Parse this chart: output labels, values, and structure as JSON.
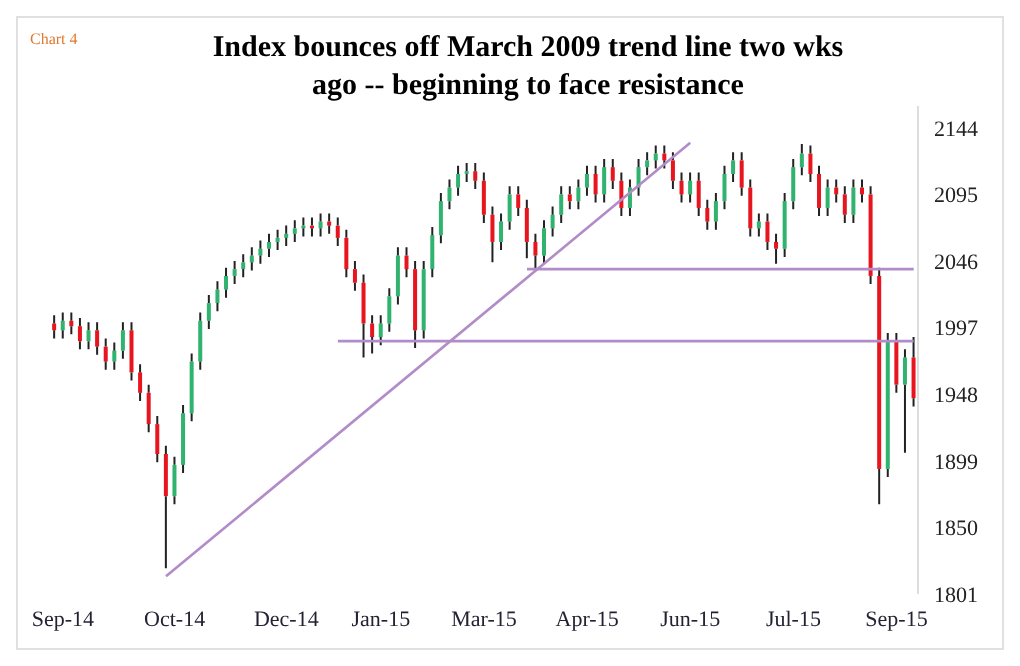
{
  "chart_data": {
    "type": "candlestick",
    "title": "Index bounces off March 2009 trend line two wks ago -- beginning to face resistance",
    "annotations": [
      "Chart 4"
    ],
    "categories": [
      null,
      "Sep-14",
      null,
      null,
      null,
      null,
      null,
      null,
      null,
      null,
      null,
      null,
      null,
      null,
      "Oct-14",
      null,
      null,
      null,
      null,
      null,
      null,
      null,
      null,
      null,
      null,
      null,
      null,
      "Dec-14",
      null,
      null,
      null,
      null,
      null,
      null,
      null,
      null,
      null,
      null,
      "Jan-15",
      null,
      null,
      null,
      null,
      null,
      null,
      null,
      null,
      null,
      null,
      null,
      "Mar-15",
      null,
      null,
      null,
      null,
      null,
      null,
      null,
      null,
      null,
      null,
      null,
      "Apr-15",
      null,
      null,
      null,
      null,
      null,
      null,
      null,
      null,
      null,
      null,
      null,
      "Jun-15",
      null,
      null,
      null,
      null,
      null,
      null,
      null,
      null,
      null,
      null,
      null,
      "Jul-15",
      null,
      null,
      null,
      null,
      null,
      null,
      null,
      null,
      null,
      null,
      null,
      "Sep-15",
      null,
      null
    ],
    "ohlc": [
      [
        2000,
        2006,
        1989,
        1995
      ],
      [
        1995,
        2008,
        1989,
        2002
      ],
      [
        2002,
        2008,
        1992,
        1998
      ],
      [
        1998,
        2004,
        1981,
        1987
      ],
      [
        1987,
        2001,
        1981,
        1995
      ],
      [
        1995,
        2001,
        1977,
        1983
      ],
      [
        1983,
        1989,
        1966,
        1972
      ],
      [
        1972,
        1986,
        1966,
        1980
      ],
      [
        1980,
        2001,
        1974,
        1995
      ],
      [
        1995,
        2001,
        1958,
        1964
      ],
      [
        1964,
        1970,
        1943,
        1949
      ],
      [
        1949,
        1955,
        1920,
        1926
      ],
      [
        1926,
        1932,
        1898,
        1904
      ],
      [
        1904,
        1910,
        1820,
        1873
      ],
      [
        1873,
        1902,
        1867,
        1896
      ],
      [
        1896,
        1940,
        1890,
        1934
      ],
      [
        1934,
        1978,
        1928,
        1972
      ],
      [
        1972,
        2008,
        1966,
        2002
      ],
      [
        2002,
        2021,
        1996,
        2015
      ],
      [
        2015,
        2031,
        2009,
        2025
      ],
      [
        2025,
        2041,
        2019,
        2035
      ],
      [
        2035,
        2046,
        2029,
        2040
      ],
      [
        2040,
        2051,
        2034,
        2045
      ],
      [
        2045,
        2056,
        2039,
        2050
      ],
      [
        2050,
        2061,
        2044,
        2055
      ],
      [
        2055,
        2066,
        2049,
        2060
      ],
      [
        2060,
        2069,
        2054,
        2063
      ],
      [
        2063,
        2072,
        2057,
        2066
      ],
      [
        2066,
        2076,
        2060,
        2070
      ],
      [
        2070,
        2078,
        2064,
        2072
      ],
      [
        2072,
        2078,
        2064,
        2070
      ],
      [
        2070,
        2081,
        2064,
        2075
      ],
      [
        2075,
        2081,
        2066,
        2072
      ],
      [
        2072,
        2078,
        2057,
        2063
      ],
      [
        2063,
        2069,
        2034,
        2040
      ],
      [
        2040,
        2046,
        2024,
        2030
      ],
      [
        2030,
        2036,
        1975,
        2000
      ],
      [
        2000,
        2006,
        1978,
        1990
      ],
      [
        1990,
        2006,
        1984,
        2000
      ],
      [
        2000,
        2026,
        1994,
        2020
      ],
      [
        2020,
        2056,
        2014,
        2050
      ],
      [
        2050,
        2056,
        2034,
        2040
      ],
      [
        2040,
        2046,
        1982,
        1995
      ],
      [
        1995,
        2046,
        1989,
        2040
      ],
      [
        2040,
        2071,
        2034,
        2065
      ],
      [
        2065,
        2096,
        2059,
        2090
      ],
      [
        2090,
        2106,
        2084,
        2100
      ],
      [
        2100,
        2116,
        2094,
        2110
      ],
      [
        2110,
        2118,
        2104,
        2112
      ],
      [
        2112,
        2118,
        2099,
        2105
      ],
      [
        2105,
        2111,
        2074,
        2080
      ],
      [
        2080,
        2086,
        2045,
        2060
      ],
      [
        2060,
        2081,
        2054,
        2075
      ],
      [
        2075,
        2101,
        2069,
        2095
      ],
      [
        2095,
        2101,
        2079,
        2085
      ],
      [
        2085,
        2091,
        2048,
        2060
      ],
      [
        2060,
        2066,
        2040,
        2050
      ],
      [
        2050,
        2076,
        2044,
        2070
      ],
      [
        2070,
        2086,
        2064,
        2080
      ],
      [
        2080,
        2101,
        2074,
        2095
      ],
      [
        2095,
        2101,
        2084,
        2090
      ],
      [
        2090,
        2106,
        2084,
        2100
      ],
      [
        2100,
        2116,
        2094,
        2110
      ],
      [
        2110,
        2116,
        2089,
        2095
      ],
      [
        2095,
        2121,
        2089,
        2115
      ],
      [
        2115,
        2121,
        2099,
        2105
      ],
      [
        2105,
        2111,
        2079,
        2085
      ],
      [
        2085,
        2106,
        2079,
        2100
      ],
      [
        2100,
        2121,
        2094,
        2115
      ],
      [
        2115,
        2126,
        2109,
        2120
      ],
      [
        2120,
        2131,
        2114,
        2125
      ],
      [
        2125,
        2131,
        2114,
        2120
      ],
      [
        2120,
        2126,
        2099,
        2105
      ],
      [
        2105,
        2111,
        2089,
        2095
      ],
      [
        2095,
        2111,
        2089,
        2105
      ],
      [
        2105,
        2111,
        2079,
        2085
      ],
      [
        2085,
        2091,
        2069,
        2075
      ],
      [
        2075,
        2096,
        2069,
        2090
      ],
      [
        2090,
        2116,
        2084,
        2110
      ],
      [
        2110,
        2126,
        2104,
        2120
      ],
      [
        2120,
        2126,
        2094,
        2100
      ],
      [
        2100,
        2106,
        2064,
        2070
      ],
      [
        2070,
        2081,
        2064,
        2075
      ],
      [
        2075,
        2081,
        2054,
        2060
      ],
      [
        2060,
        2066,
        2044,
        2055
      ],
      [
        2055,
        2096,
        2049,
        2090
      ],
      [
        2090,
        2121,
        2084,
        2115
      ],
      [
        2115,
        2132,
        2109,
        2125
      ],
      [
        2125,
        2131,
        2104,
        2110
      ],
      [
        2110,
        2116,
        2079,
        2085
      ],
      [
        2085,
        2106,
        2079,
        2100
      ],
      [
        2100,
        2106,
        2089,
        2095
      ],
      [
        2095,
        2101,
        2074,
        2080
      ],
      [
        2080,
        2106,
        2074,
        2100
      ],
      [
        2100,
        2106,
        2089,
        2095
      ],
      [
        2095,
        2101,
        2029,
        2035
      ],
      [
        2035,
        2041,
        1867,
        1893
      ],
      [
        1893,
        1993,
        1887,
        1987
      ],
      [
        1987,
        1993,
        1949,
        1955
      ],
      [
        1955,
        1981,
        1905,
        1975
      ],
      [
        1975,
        1990,
        1939,
        1945
      ]
    ],
    "series": [
      {
        "type": "line",
        "color": "#b28cc8",
        "values": [
          null,
          null,
          null,
          null,
          null,
          null,
          null,
          null,
          null,
          null,
          null,
          null,
          null,
          1814,
          null,
          null,
          null,
          null,
          null,
          null,
          null,
          null,
          null,
          null,
          null,
          null,
          null,
          null,
          null,
          null,
          null,
          null,
          null,
          null,
          null,
          null,
          null,
          null,
          null,
          null,
          null,
          null,
          null,
          null,
          null,
          null,
          null,
          null,
          null,
          null,
          null,
          null,
          null,
          null,
          null,
          null,
          null,
          null,
          null,
          null,
          null,
          null,
          null,
          null,
          null,
          null,
          null,
          null,
          null,
          null,
          null,
          null,
          null,
          null,
          2133,
          null,
          null,
          null,
          null,
          null,
          null,
          null,
          null,
          null,
          null,
          null,
          null,
          null,
          null,
          null,
          null,
          null,
          null,
          null,
          null,
          null,
          null,
          null,
          null,
          null,
          null
        ]
      },
      {
        "type": "line",
        "color": "#b28cc8",
        "values": [
          null,
          null,
          null,
          null,
          null,
          null,
          null,
          null,
          null,
          null,
          null,
          null,
          null,
          null,
          null,
          null,
          null,
          null,
          null,
          null,
          null,
          null,
          null,
          null,
          null,
          null,
          null,
          null,
          null,
          null,
          null,
          null,
          null,
          1987,
          null,
          null,
          null,
          null,
          null,
          null,
          null,
          null,
          null,
          null,
          null,
          null,
          null,
          null,
          null,
          null,
          null,
          null,
          null,
          null,
          null,
          null,
          null,
          null,
          null,
          null,
          null,
          null,
          null,
          null,
          null,
          null,
          null,
          null,
          null,
          null,
          null,
          null,
          null,
          null,
          null,
          null,
          null,
          null,
          null,
          null,
          null,
          null,
          null,
          null,
          null,
          null,
          null,
          null,
          null,
          null,
          null,
          null,
          null,
          null,
          null,
          null,
          null,
          null,
          null,
          null,
          1987
        ]
      },
      {
        "type": "line",
        "color": "#b28cc8",
        "values": [
          null,
          null,
          null,
          null,
          null,
          null,
          null,
          null,
          null,
          null,
          null,
          null,
          null,
          null,
          null,
          null,
          null,
          null,
          null,
          null,
          null,
          null,
          null,
          null,
          null,
          null,
          null,
          null,
          null,
          null,
          null,
          null,
          null,
          null,
          null,
          null,
          null,
          null,
          null,
          null,
          null,
          null,
          null,
          null,
          null,
          null,
          null,
          null,
          null,
          null,
          null,
          null,
          null,
          null,
          null,
          2040,
          null,
          null,
          null,
          null,
          null,
          null,
          null,
          null,
          null,
          null,
          null,
          null,
          null,
          null,
          null,
          null,
          null,
          null,
          null,
          null,
          null,
          null,
          null,
          null,
          null,
          null,
          null,
          null,
          null,
          null,
          null,
          null,
          null,
          null,
          null,
          null,
          null,
          null,
          null,
          null,
          null,
          null,
          null,
          null,
          2040
        ]
      }
    ],
    "ylim": [
      1801,
      2160
    ],
    "yticks": [
      1801,
      1850,
      1899,
      1948,
      1997,
      2046,
      2095,
      2144
    ]
  }
}
